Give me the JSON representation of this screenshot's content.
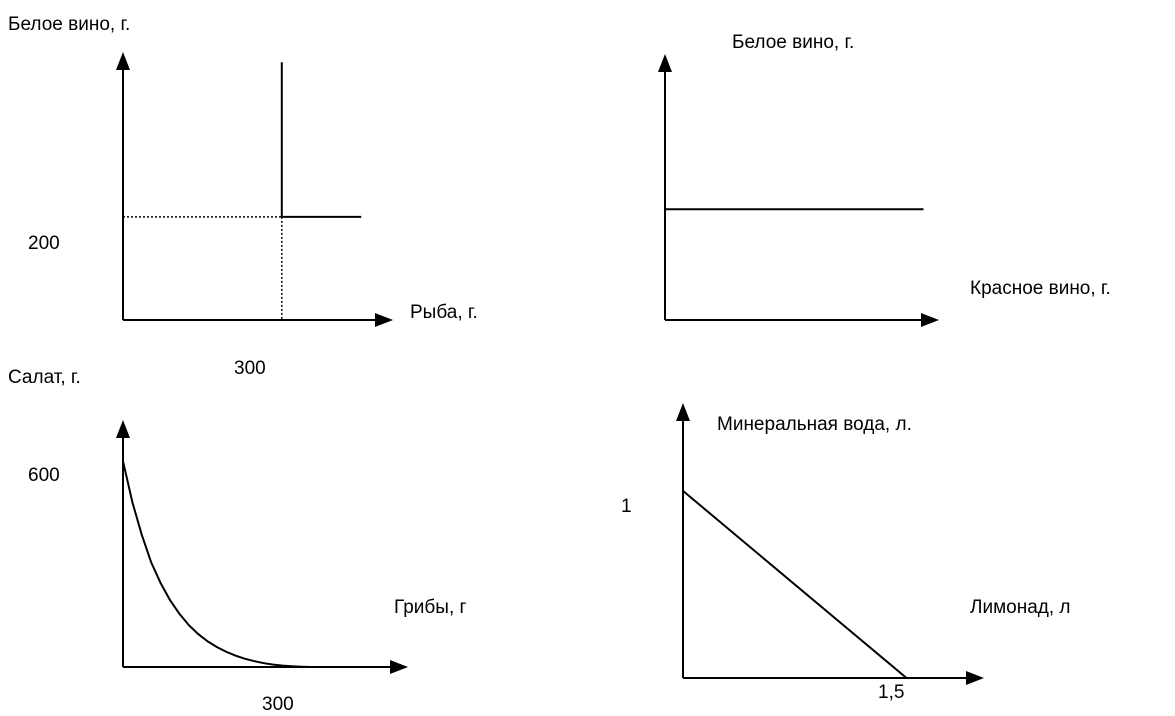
{
  "chart_data": [
    {
      "type": "line",
      "ylabel": "Белое вино, г.",
      "xlabel": "Рыба, г.",
      "tick_labels": {
        "x": "300",
        "y": "200"
      },
      "series": [
        {
          "x": [
            300,
            300,
            450
          ],
          "y": [
            500,
            200,
            200
          ]
        }
      ],
      "guides": [
        {
          "x": [
            0,
            300
          ],
          "y": [
            200,
            200
          ]
        },
        {
          "x": [
            300,
            300
          ],
          "y": [
            200,
            0
          ]
        }
      ],
      "xlim": [
        0,
        510
      ],
      "ylim": [
        0,
        520
      ]
    },
    {
      "type": "line",
      "ylabel": "Белое  вино, г.",
      "xlabel": "Красное вино, г.",
      "series": [
        {
          "x": [
            0,
            100
          ],
          "y": [
            50,
            50
          ]
        }
      ],
      "xlim": [
        0,
        106
      ],
      "ylim": [
        0,
        120
      ]
    },
    {
      "type": "line",
      "ylabel": "Салат, г.",
      "xlabel": "Грибы, г",
      "tick_labels": {
        "x": "300",
        "y": "600"
      },
      "series": [
        {
          "x": [
            0,
            15,
            30,
            45,
            60,
            75,
            90,
            105,
            120,
            135,
            150,
            165,
            180,
            195,
            210,
            225,
            240,
            255,
            270,
            285,
            300
          ],
          "y": [
            600,
            480,
            385,
            305,
            245,
            195,
            155,
            122,
            96,
            75,
            58,
            44,
            33,
            24,
            17,
            11,
            7,
            4,
            2,
            1,
            0
          ]
        }
      ],
      "xlim": [
        0,
        455
      ],
      "ylim": [
        0,
        720
      ]
    },
    {
      "type": "line",
      "ylabel": "Минеральная вода, л.",
      "xlabel": "Лимонад, л",
      "tick_labels": {
        "x": "1,5",
        "y": "1"
      },
      "series": [
        {
          "x": [
            0,
            1.5
          ],
          "y": [
            1,
            0
          ]
        }
      ],
      "xlim": [
        0,
        2.02
      ],
      "ylim": [
        0,
        1.47
      ]
    }
  ]
}
